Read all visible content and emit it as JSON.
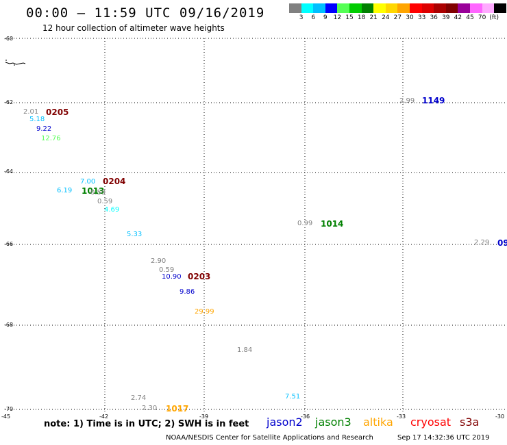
{
  "header": {
    "title": "00:00 – 11:59 UTC 09/16/2019",
    "subtitle": "12 hour collection of altimeter wave heights"
  },
  "legend": {
    "colors": [
      "#808080",
      "#00ffff",
      "#00bfff",
      "#0000ff",
      "#55ff55",
      "#00cc00",
      "#008000",
      "#ffff00",
      "#ffd700",
      "#ffa500",
      "#ff0000",
      "#dd0000",
      "#aa0000",
      "#800000",
      "#990099",
      "#ff66ff",
      "#ffaaff",
      "#000000"
    ],
    "labels": [
      "3",
      "6",
      "9",
      "12",
      "15",
      "18",
      "21",
      "24",
      "27",
      "30",
      "33",
      "36",
      "39",
      "42",
      "45",
      "70",
      "(ft)"
    ]
  },
  "axes": {
    "y_labels": [
      "-60",
      "-62",
      "-64",
      "-66",
      "-68",
      "-70"
    ],
    "x_labels": [
      "-45",
      "-42",
      "-39",
      "-36",
      "-33",
      "-30"
    ]
  },
  "observations": [
    {
      "text": "2.01",
      "color": "#808080",
      "kind": "value"
    },
    {
      "text": "0205",
      "color": "#800000",
      "kind": "pass"
    },
    {
      "text": "5.18",
      "color": "#00bfff",
      "kind": "value"
    },
    {
      "text": "9.22",
      "color": "#0000cc",
      "kind": "value"
    },
    {
      "text": "12.76",
      "color": "#55ff55",
      "kind": "value"
    },
    {
      "text": "7.00",
      "color": "#00bfff",
      "kind": "value"
    },
    {
      "text": "0204",
      "color": "#800000",
      "kind": "pass"
    },
    {
      "text": "6.19",
      "color": "#00bfff",
      "kind": "value"
    },
    {
      "text": "1013",
      "color": "#008000",
      "kind": "pass"
    },
    {
      "text": "0.59",
      "color": "#808080",
      "kind": "value"
    },
    {
      "text": "0.59",
      "color": "#808080",
      "kind": "value"
    },
    {
      "text": "4.69",
      "color": "#00ffff",
      "kind": "value"
    },
    {
      "text": "5.33",
      "color": "#00bfff",
      "kind": "value"
    },
    {
      "text": "0.99",
      "color": "#808080",
      "kind": "value"
    },
    {
      "text": "1014",
      "color": "#008000",
      "kind": "pass"
    },
    {
      "text": "2.99",
      "color": "#808080",
      "kind": "value"
    },
    {
      "text": "1149",
      "color": "#0000cc",
      "kind": "pass"
    },
    {
      "text": "2.29",
      "color": "#808080",
      "kind": "value"
    },
    {
      "text": "09",
      "color": "#0000cc",
      "kind": "pass"
    },
    {
      "text": "2.90",
      "color": "#808080",
      "kind": "value"
    },
    {
      "text": "0.59",
      "color": "#808080",
      "kind": "value"
    },
    {
      "text": "10.90",
      "color": "#0000cc",
      "kind": "value"
    },
    {
      "text": "0203",
      "color": "#800000",
      "kind": "pass"
    },
    {
      "text": "9.86",
      "color": "#0000cc",
      "kind": "value"
    },
    {
      "text": "29.99",
      "color": "#ffa500",
      "kind": "value"
    },
    {
      "text": "1.84",
      "color": "#808080",
      "kind": "value"
    },
    {
      "text": "2.74",
      "color": "#808080",
      "kind": "value"
    },
    {
      "text": "7.51",
      "color": "#00bfff",
      "kind": "value"
    },
    {
      "text": "2.30",
      "color": "#808080",
      "kind": "value"
    },
    {
      "text": "1017",
      "color": "#ffa500",
      "kind": "pass"
    }
  ],
  "footer": {
    "note": "note: 1) Time is in UTC; 2) SWH is in feet",
    "satellites": [
      {
        "name": "jason2",
        "color": "#0000cc"
      },
      {
        "name": "jason3",
        "color": "#008000"
      },
      {
        "name": "altika",
        "color": "#ffa500"
      },
      {
        "name": "cryosat",
        "color": "#ff0000"
      },
      {
        "name": "s3a",
        "color": "#800000"
      }
    ],
    "credit": "NOAA/NESDIS Center for Satellite Applications and Research",
    "timestamp": "Sep 17 14:32:36 UTC 2019"
  }
}
